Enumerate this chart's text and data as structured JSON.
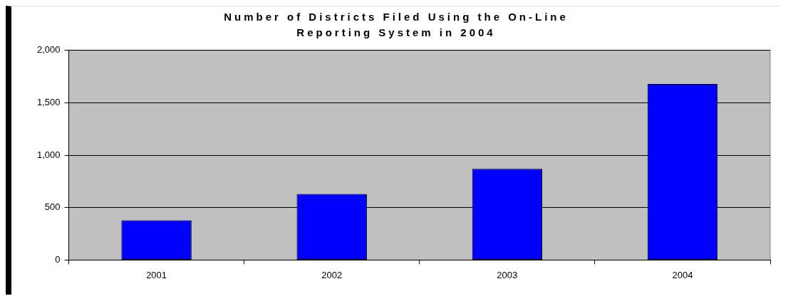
{
  "chart_data": {
    "type": "bar",
    "title": "Number of Districts Filed Using the On-Line Reporting System in 2004",
    "categories": [
      "2001",
      "2002",
      "2003",
      "2004"
    ],
    "values": [
      380,
      630,
      870,
      1680
    ],
    "color": "#0000ff",
    "ylim": [
      0,
      2000
    ],
    "yticks": [
      {
        "value": 0,
        "label": "0"
      },
      {
        "value": 500,
        "label": "500"
      },
      {
        "value": 1000,
        "label": "1,000"
      },
      {
        "value": 1500,
        "label": "1,500"
      },
      {
        "value": 2000,
        "label": "2,000"
      }
    ],
    "grid": "y",
    "legend": false
  }
}
